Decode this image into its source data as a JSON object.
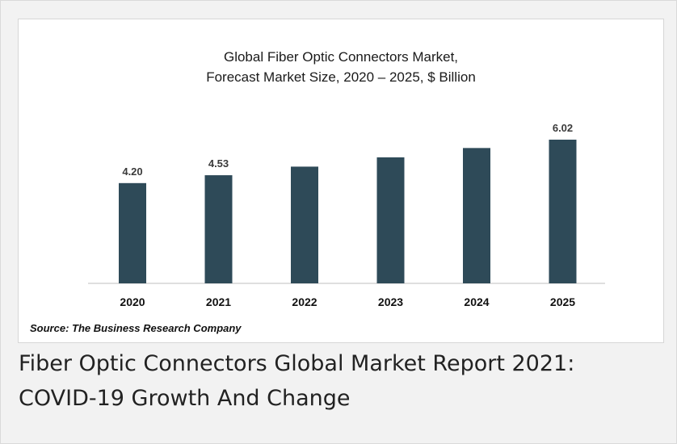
{
  "chart_data": {
    "type": "bar",
    "title_lines": [
      "Global Fiber Optic Connectors Market,",
      "Forecast Market Size, 2020 – 2025, $ Billion"
    ],
    "categories": [
      "2020",
      "2021",
      "2022",
      "2023",
      "2024",
      "2025"
    ],
    "values": [
      4.2,
      4.53,
      4.89,
      5.28,
      5.67,
      6.02
    ],
    "data_labels": [
      "4.20",
      "4.53",
      "",
      "",
      "",
      "6.02"
    ],
    "ylim": [
      0,
      6.02
    ],
    "grid": false,
    "legend": "none",
    "bar_color": "#2e4a58"
  },
  "source": "Source: The Business Research Company",
  "caption": "Fiber Optic Connectors Global Market Report 2021: COVID-19 Growth And Change"
}
